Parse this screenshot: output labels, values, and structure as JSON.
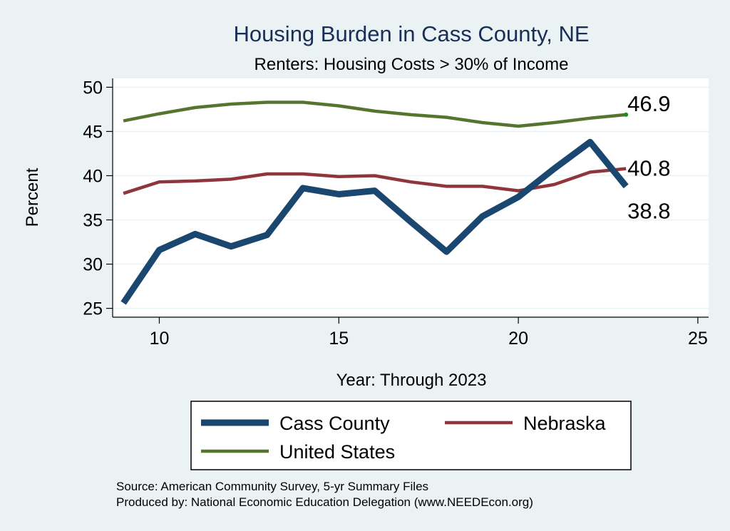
{
  "chart_data": {
    "type": "line",
    "title": "Housing Burden in Cass County, NE",
    "subtitle": "Renters: Housing Costs > 30% of Income",
    "xlabel": "Year: Through 2023",
    "ylabel": "Percent",
    "xlim": [
      8.7,
      25.3
    ],
    "ylim": [
      24,
      51
    ],
    "xticks": [
      10,
      15,
      20,
      25
    ],
    "yticks": [
      25,
      30,
      35,
      40,
      45,
      50
    ],
    "grid": true,
    "legend_position": "bottom",
    "x": [
      9,
      10,
      11,
      12,
      13,
      14,
      15,
      16,
      17,
      18,
      19,
      20,
      21,
      22,
      23
    ],
    "series": [
      {
        "name": "Cass County",
        "color": "#1a476f",
        "values": [
          25.6,
          31.6,
          33.4,
          32.0,
          33.3,
          38.6,
          37.9,
          38.3,
          34.8,
          31.4,
          35.4,
          37.6,
          40.8,
          43.8,
          38.8
        ],
        "end_label": "38.8"
      },
      {
        "name": "Nebraska",
        "color": "#90353b",
        "values": [
          38.0,
          39.3,
          39.4,
          39.6,
          40.2,
          40.2,
          39.9,
          40.0,
          39.3,
          38.8,
          38.8,
          38.3,
          39.0,
          40.4,
          40.8
        ],
        "end_label": "40.8"
      },
      {
        "name": "United States",
        "color": "#55752f",
        "values": [
          46.2,
          47.0,
          47.7,
          48.1,
          48.3,
          48.3,
          47.9,
          47.3,
          46.9,
          46.6,
          46.0,
          45.6,
          46.0,
          46.5,
          46.9
        ],
        "end_label": "46.9"
      }
    ],
    "notes": [
      "Source: American Community Survey, 5-yr Summary Files",
      "Produced by: National Economic Education Delegation (www.NEEDEcon.org)"
    ]
  }
}
